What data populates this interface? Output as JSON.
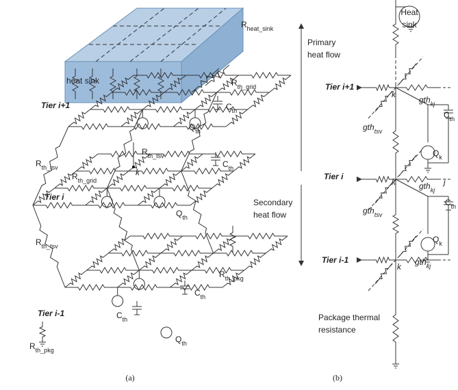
{
  "panel_a": {
    "caption": "(a)",
    "labels": [
      {
        "text": "heat sink"
      },
      {
        "text": "R",
        "sub": "heat_sink"
      },
      {
        "text": "R",
        "sub": "th_grid"
      },
      {
        "text": "Tier i+1"
      },
      {
        "text": "C",
        "sub": "th"
      },
      {
        "text": "R",
        "sub": "th_tsv"
      },
      {
        "text": "R",
        "sub": "th_tsv"
      },
      {
        "text": "Q",
        "sub": "th"
      },
      {
        "text": "C",
        "sub": "th"
      },
      {
        "text": "k"
      },
      {
        "text": "R",
        "sub": "th_grid"
      },
      {
        "text": "Tier i"
      },
      {
        "text": "Q",
        "sub": "th"
      },
      {
        "text": "R",
        "sub": "th_tsv"
      },
      {
        "text": "R",
        "sub": "th_pkg"
      },
      {
        "text": "Tier i-1"
      },
      {
        "text": "C",
        "sub": "th"
      },
      {
        "text": "C",
        "sub": "th"
      },
      {
        "text": "Q",
        "sub": "th"
      },
      {
        "text": "R",
        "sub": "th_pkg"
      }
    ]
  },
  "panel_b": {
    "caption": "(b)",
    "labels": [
      {
        "lines": [
          "Heat",
          "sink"
        ]
      },
      {
        "lines": [
          "Primary",
          "heat flow"
        ]
      },
      {
        "text": "Tier i+1"
      },
      {
        "text": "k"
      },
      {
        "text": "gth",
        "sub": "kj"
      },
      {
        "text": "C",
        "sub": "th"
      },
      {
        "text": "gth",
        "sub": "tsv"
      },
      {
        "text": "Q",
        "sub": "k"
      },
      {
        "text": "Tier i"
      },
      {
        "text": "k"
      },
      {
        "text": "j"
      },
      {
        "text": "gth",
        "sub": "kj"
      },
      {
        "text": "C",
        "sub": "th"
      },
      {
        "lines": [
          "Secondary",
          "heat flow"
        ]
      },
      {
        "text": "gth",
        "sub": "tsv"
      },
      {
        "text": "Q",
        "sub": "k"
      },
      {
        "text": "Tier i-1"
      },
      {
        "text": "k"
      },
      {
        "text": "gth",
        "sub": "kj"
      },
      {
        "lines": [
          "Package thermal",
          "resistance"
        ]
      }
    ]
  }
}
